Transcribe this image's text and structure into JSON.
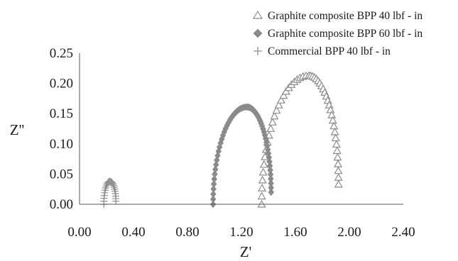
{
  "chart_data": {
    "type": "scatter",
    "title": "",
    "xlabel": "Z'",
    "ylabel": "Z''",
    "xlim": [
      0,
      2.4
    ],
    "ylim": [
      0,
      0.25
    ],
    "x_ticks": [
      "0.00",
      "0.40",
      "0.80",
      "1.20",
      "1.60",
      "2.00",
      "2.40"
    ],
    "y_ticks": [
      "0.00",
      "0.05",
      "0.10",
      "0.15",
      "0.20",
      "0.25"
    ],
    "grid": false,
    "legend_position": "top-right",
    "series": [
      {
        "name": "Graphite composite BPP 40 lbf - in",
        "marker": "triangle-open",
        "color": "#8c8c8c",
        "arc": {
          "x_start": 1.35,
          "x_end": 1.92,
          "peak_x": 1.7,
          "peak_y": 0.213,
          "end_y": 0.033,
          "points": 50
        }
      },
      {
        "name": "Graphite composite BPP 60 lbf - in",
        "marker": "diamond-filled",
        "color": "#8a8a8a",
        "arc": {
          "x_start": 0.99,
          "x_end": 1.42,
          "peak_x": 1.24,
          "peak_y": 0.161,
          "end_y": 0.02,
          "points": 60
        }
      },
      {
        "name": "Commercial BPP 40 lbf - in",
        "marker": "plus",
        "color": "#8f8f8f",
        "arc": {
          "x_start": 0.18,
          "x_end": 0.27,
          "peak_x": 0.225,
          "peak_y": 0.038,
          "end_y": 0.005,
          "points": 24
        }
      }
    ]
  }
}
